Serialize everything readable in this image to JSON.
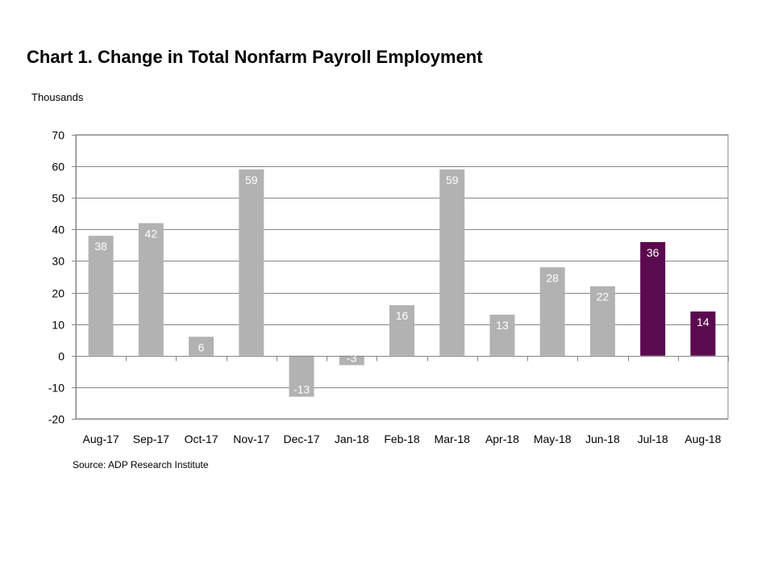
{
  "chart_data": {
    "type": "bar",
    "title": "Chart 1. Change in Total Nonfarm Payroll Employment",
    "y_unit": "Thousands",
    "source": "Source: ADP Research Institute",
    "categories": [
      "Aug-17",
      "Sep-17",
      "Oct-17",
      "Nov-17",
      "Dec-17",
      "Jan-18",
      "Feb-18",
      "Mar-18",
      "Apr-18",
      "May-18",
      "Jun-18",
      "Jul-18",
      "Aug-18"
    ],
    "values": [
      38,
      42,
      6,
      59,
      -13,
      -3,
      16,
      59,
      13,
      28,
      22,
      36,
      14
    ],
    "value_labels": [
      "38",
      "42",
      "6",
      "59",
      "-13",
      "-3",
      "16",
      "59",
      "13",
      "28",
      "22",
      "36",
      "14"
    ],
    "highlighted": [
      false,
      false,
      false,
      false,
      false,
      false,
      false,
      false,
      false,
      false,
      false,
      true,
      true
    ],
    "ylim": [
      -20,
      70
    ],
    "yticks": [
      -20,
      -10,
      0,
      10,
      20,
      30,
      40,
      50,
      60,
      70
    ],
    "grid": true,
    "legend": "none",
    "colors": {
      "bar": "#b2b2b2",
      "highlight": "#5b0a4f",
      "grid": "#868686",
      "axis": "#868686",
      "label_text": "#ffffff"
    }
  }
}
